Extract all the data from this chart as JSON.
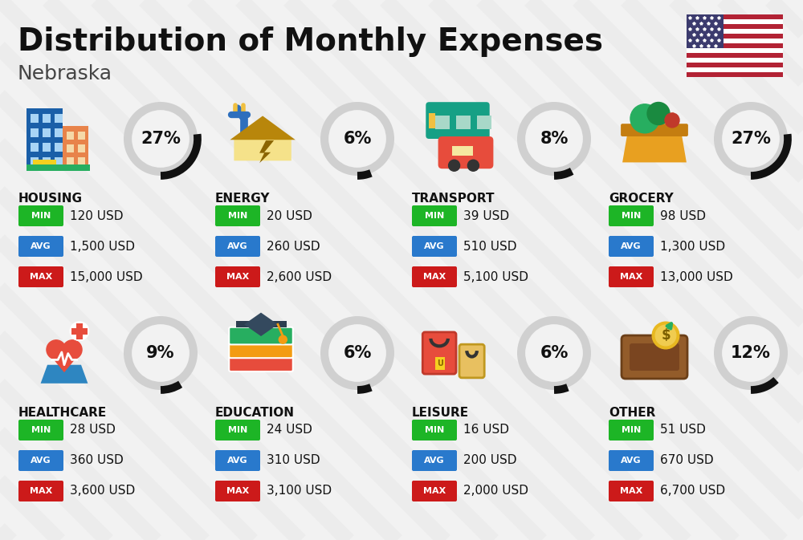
{
  "title": "Distribution of Monthly Expenses",
  "subtitle": "Nebraska",
  "bg_color": "#f2f2f2",
  "stripe_color": "#e9e9e9",
  "categories": [
    {
      "name": "HOUSING",
      "percent": 27,
      "icon": "housing",
      "min": "120 USD",
      "avg": "1,500 USD",
      "max": "15,000 USD",
      "row": 0,
      "col": 0
    },
    {
      "name": "ENERGY",
      "percent": 6,
      "icon": "energy",
      "min": "20 USD",
      "avg": "260 USD",
      "max": "2,600 USD",
      "row": 0,
      "col": 1
    },
    {
      "name": "TRANSPORT",
      "percent": 8,
      "icon": "transport",
      "min": "39 USD",
      "avg": "510 USD",
      "max": "5,100 USD",
      "row": 0,
      "col": 2
    },
    {
      "name": "GROCERY",
      "percent": 27,
      "icon": "grocery",
      "min": "98 USD",
      "avg": "1,300 USD",
      "max": "13,000 USD",
      "row": 0,
      "col": 3
    },
    {
      "name": "HEALTHCARE",
      "percent": 9,
      "icon": "healthcare",
      "min": "28 USD",
      "avg": "360 USD",
      "max": "3,600 USD",
      "row": 1,
      "col": 0
    },
    {
      "name": "EDUCATION",
      "percent": 6,
      "icon": "education",
      "min": "24 USD",
      "avg": "310 USD",
      "max": "3,100 USD",
      "row": 1,
      "col": 1
    },
    {
      "name": "LEISURE",
      "percent": 6,
      "icon": "leisure",
      "min": "16 USD",
      "avg": "200 USD",
      "max": "2,000 USD",
      "row": 1,
      "col": 2
    },
    {
      "name": "OTHER",
      "percent": 12,
      "icon": "other",
      "min": "51 USD",
      "avg": "670 USD",
      "max": "6,700 USD",
      "row": 1,
      "col": 3
    }
  ],
  "min_color": "#1db526",
  "avg_color": "#2979cc",
  "max_color": "#cc1a1a",
  "circle_bg_color": "#d0d0d0",
  "circle_fill_color": "#f2f2f2",
  "arc_color": "#111111",
  "text_color": "#111111"
}
